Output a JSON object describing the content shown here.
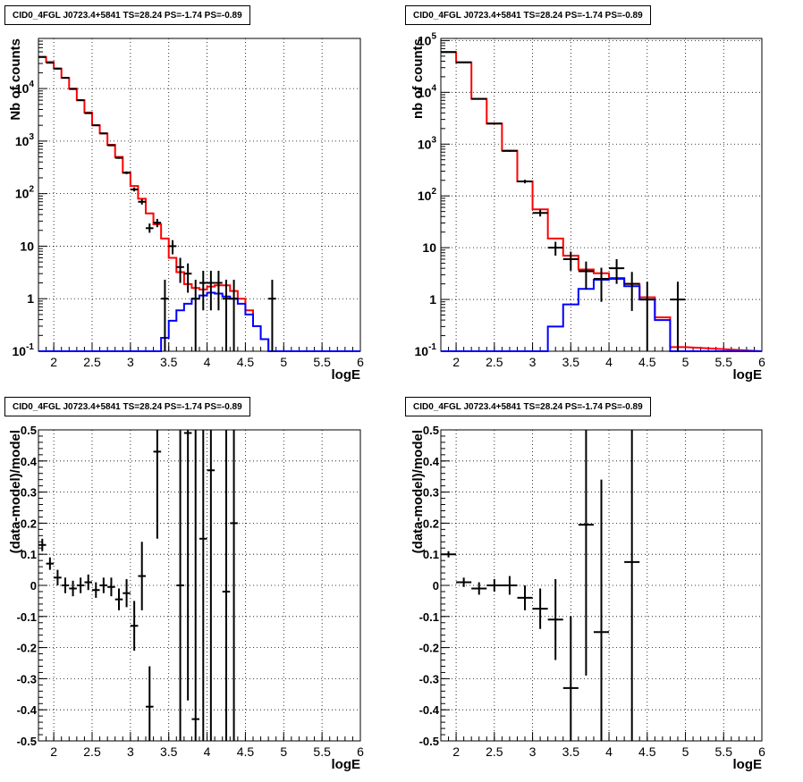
{
  "chart_data": [
    {
      "type": "histogram",
      "panel": "top-left",
      "title": "CID0_4FGL J0723.4+5841 TS=28.24 PS=-1.74 PS=-0.89",
      "xlabel": "logE",
      "ylabel": "Nb of counts",
      "xlim": [
        1.8,
        6.0
      ],
      "ylim": [
        0.1,
        90000
      ],
      "log_y": true,
      "grid": true,
      "x_ticks": [
        "2",
        "2.5",
        "3",
        "3.5",
        "4",
        "4.5",
        "5",
        "5.5",
        "6"
      ],
      "y_ticks": [
        "10^-1",
        "1",
        "10",
        "10^2",
        "10^3",
        "10^4"
      ],
      "bin_edges": [
        1.8,
        1.9,
        2.0,
        2.1,
        2.2,
        2.3,
        2.4,
        2.5,
        2.6,
        2.7,
        2.8,
        2.9,
        3.0,
        3.1,
        3.2,
        3.3,
        3.4,
        3.5,
        3.6,
        3.7,
        3.8,
        3.9,
        4.0,
        4.1,
        4.2,
        4.3,
        4.4,
        4.5,
        4.6,
        4.7,
        4.8,
        4.9,
        5.0
      ],
      "series": [
        {
          "color": "#ff0000",
          "values": [
            40000,
            32000,
            24000,
            16000,
            10000,
            6000,
            3500,
            2000,
            1400,
            850,
            500,
            250,
            140,
            80,
            42,
            26,
            14,
            6,
            3.2,
            1.9,
            1.6,
            1.5,
            1.7,
            1.8,
            1.8,
            1.4,
            1.0,
            0.6,
            0.3,
            0.17,
            0.1,
            0.1
          ]
        },
        {
          "color": "#0000ff",
          "values": [
            0.1,
            0.1,
            0.1,
            0.1,
            0.1,
            0.1,
            0.1,
            0.1,
            0.1,
            0.1,
            0.1,
            0.1,
            0.1,
            0.1,
            0.1,
            0.1,
            0.18,
            0.38,
            0.6,
            0.8,
            1.0,
            1.15,
            1.3,
            1.25,
            1.1,
            1.0,
            0.8,
            0.5,
            0.3,
            0.17,
            0.1,
            0.1
          ]
        }
      ],
      "points": [
        {
          "x": 1.85,
          "y": 40000,
          "lo": 39000,
          "hi": 41000
        },
        {
          "x": 1.95,
          "y": 31000,
          "lo": 30000,
          "hi": 32000
        },
        {
          "x": 2.05,
          "y": 24000,
          "lo": 23000,
          "hi": 25000
        },
        {
          "x": 2.15,
          "y": 16000,
          "lo": 15500,
          "hi": 16500
        },
        {
          "x": 2.25,
          "y": 9800,
          "lo": 9500,
          "hi": 10100
        },
        {
          "x": 2.35,
          "y": 6000,
          "lo": 5800,
          "hi": 6200
        },
        {
          "x": 2.45,
          "y": 3400,
          "lo": 3300,
          "hi": 3500
        },
        {
          "x": 2.55,
          "y": 2000,
          "lo": 1950,
          "hi": 2050
        },
        {
          "x": 2.65,
          "y": 1400,
          "lo": 1350,
          "hi": 1450
        },
        {
          "x": 2.75,
          "y": 830,
          "lo": 800,
          "hi": 860
        },
        {
          "x": 2.85,
          "y": 480,
          "lo": 460,
          "hi": 500
        },
        {
          "x": 2.95,
          "y": 250,
          "lo": 235,
          "hi": 265
        },
        {
          "x": 3.05,
          "y": 120,
          "lo": 110,
          "hi": 131
        },
        {
          "x": 3.15,
          "y": 70,
          "lo": 62,
          "hi": 78
        },
        {
          "x": 3.25,
          "y": 22,
          "lo": 18,
          "hi": 27
        },
        {
          "x": 3.35,
          "y": 28,
          "lo": 23,
          "hi": 33
        },
        {
          "x": 3.45,
          "y": 1,
          "lo": 0.1,
          "hi": 2.3
        },
        {
          "x": 3.55,
          "y": 10,
          "lo": 7,
          "hi": 13
        },
        {
          "x": 3.65,
          "y": 4,
          "lo": 2,
          "hi": 6
        },
        {
          "x": 3.75,
          "y": 3,
          "lo": 1.3,
          "hi": 4.7
        },
        {
          "x": 3.85,
          "y": 1,
          "lo": 0.1,
          "hi": 2.3
        },
        {
          "x": 3.95,
          "y": 2,
          "lo": 0.6,
          "hi": 3.4
        },
        {
          "x": 4.05,
          "y": 2,
          "lo": 0.6,
          "hi": 3.4
        },
        {
          "x": 4.15,
          "y": 2,
          "lo": 0.6,
          "hi": 3.4
        },
        {
          "x": 4.25,
          "y": 1,
          "lo": 0.1,
          "hi": 2.3
        },
        {
          "x": 4.35,
          "y": 1,
          "lo": 0.1,
          "hi": 2.3
        },
        {
          "x": 4.85,
          "y": 1,
          "lo": 0.1,
          "hi": 2.3
        }
      ]
    },
    {
      "type": "histogram",
      "panel": "top-right",
      "title": "CID0_4FGL J0723.4+5841 TS=28.24 PS=-1.74 PS=-0.89",
      "xlabel": "logE",
      "ylabel": "nb of counts",
      "xlim": [
        1.8,
        6.0
      ],
      "ylim": [
        0.1,
        110000
      ],
      "log_y": true,
      "grid": true,
      "x_ticks": [
        "2",
        "2.5",
        "3",
        "3.5",
        "4",
        "4.5",
        "5",
        "5.5",
        "6"
      ],
      "y_ticks": [
        "10^-1",
        "1",
        "10",
        "10^2",
        "10^3",
        "10^4",
        "10^5"
      ],
      "bin_edges": [
        1.8,
        2.0,
        2.2,
        2.4,
        2.6,
        2.8,
        3.0,
        3.2,
        3.4,
        3.6,
        3.8,
        4.0,
        4.2,
        4.4,
        4.6,
        4.8,
        5.0
      ],
      "series": [
        {
          "color": "#ff0000",
          "values": [
            60000,
            38000,
            7500,
            2500,
            750,
            190,
            55,
            15,
            7,
            3.8,
            3.2,
            2.6,
            2.0,
            1.1,
            0.45,
            0.12
          ]
        },
        {
          "color": "#0000ff",
          "values": [
            0.1,
            0.1,
            0.1,
            0.1,
            0.1,
            0.1,
            0.1,
            0.3,
            0.8,
            1.6,
            2.4,
            2.5,
            1.8,
            1.0,
            0.4,
            0.1
          ]
        }
      ],
      "points": [
        {
          "x": 1.9,
          "y": 60000,
          "lo": 59500,
          "hi": 60500
        },
        {
          "x": 2.1,
          "y": 38000,
          "lo": 37600,
          "hi": 38400
        },
        {
          "x": 2.3,
          "y": 7500,
          "lo": 7300,
          "hi": 7700
        },
        {
          "x": 2.5,
          "y": 2500,
          "lo": 2400,
          "hi": 2600
        },
        {
          "x": 2.7,
          "y": 740,
          "lo": 710,
          "hi": 770
        },
        {
          "x": 2.9,
          "y": 190,
          "lo": 175,
          "hi": 205
        },
        {
          "x": 3.1,
          "y": 47,
          "lo": 40,
          "hi": 54
        },
        {
          "x": 3.3,
          "y": 10,
          "lo": 7,
          "hi": 13
        },
        {
          "x": 3.5,
          "y": 6,
          "lo": 3.6,
          "hi": 8.4
        },
        {
          "x": 3.7,
          "y": 3.5,
          "lo": 1.6,
          "hi": 5.4
        },
        {
          "x": 3.9,
          "y": 2.5,
          "lo": 0.9,
          "hi": 4.1
        },
        {
          "x": 4.1,
          "y": 4,
          "lo": 2,
          "hi": 6
        },
        {
          "x": 4.3,
          "y": 2,
          "lo": 0.6,
          "hi": 3.4
        },
        {
          "x": 4.5,
          "y": 1,
          "lo": 0.1,
          "hi": 2.2
        },
        {
          "x": 4.9,
          "y": 1,
          "lo": 0.1,
          "hi": 2.2
        }
      ]
    },
    {
      "type": "scatter",
      "panel": "bottom-left",
      "title": "CID0_4FGL J0723.4+5841 TS=28.24 PS=-1.74 PS=-0.89",
      "xlabel": "logE",
      "ylabel": "(data-model)/model",
      "xlim": [
        1.8,
        6.0
      ],
      "ylim": [
        -0.5,
        0.5
      ],
      "grid": true,
      "x_ticks": [
        "2",
        "2.5",
        "3",
        "3.5",
        "4",
        "4.5",
        "5",
        "5.5",
        "6"
      ],
      "y_ticks": [
        "-0.5",
        "-0.4",
        "-0.3",
        "-0.2",
        "-0.1",
        "0",
        "0.1",
        "0.2",
        "0.3",
        "0.4",
        "0.5"
      ],
      "x_halfwidth": 0.05,
      "points": [
        {
          "x": 1.85,
          "y": 0.13,
          "lo": 0.11,
          "hi": 0.15
        },
        {
          "x": 1.95,
          "y": 0.07,
          "lo": 0.05,
          "hi": 0.09
        },
        {
          "x": 2.05,
          "y": 0.025,
          "lo": 0.0,
          "hi": 0.05
        },
        {
          "x": 2.15,
          "y": 0.0,
          "lo": -0.025,
          "hi": 0.025
        },
        {
          "x": 2.25,
          "y": -0.01,
          "lo": -0.035,
          "hi": 0.015
        },
        {
          "x": 2.35,
          "y": 0.0,
          "lo": -0.025,
          "hi": 0.025
        },
        {
          "x": 2.45,
          "y": 0.01,
          "lo": -0.015,
          "hi": 0.035
        },
        {
          "x": 2.55,
          "y": -0.015,
          "lo": -0.04,
          "hi": 0.01
        },
        {
          "x": 2.65,
          "y": 0.0,
          "lo": -0.025,
          "hi": 0.025
        },
        {
          "x": 2.75,
          "y": -0.005,
          "lo": -0.035,
          "hi": 0.025
        },
        {
          "x": 2.85,
          "y": -0.045,
          "lo": -0.08,
          "hi": -0.01
        },
        {
          "x": 2.95,
          "y": -0.025,
          "lo": -0.07,
          "hi": 0.02
        },
        {
          "x": 3.05,
          "y": -0.13,
          "lo": -0.21,
          "hi": -0.05
        },
        {
          "x": 3.15,
          "y": 0.03,
          "lo": -0.08,
          "hi": 0.14
        },
        {
          "x": 3.25,
          "y": -0.39,
          "lo": -0.5,
          "hi": -0.26
        },
        {
          "x": 3.35,
          "y": 0.43,
          "lo": 0.15,
          "hi": 0.5
        },
        {
          "x": 3.65,
          "y": 0.0,
          "lo": -0.5,
          "hi": 0.5
        },
        {
          "x": 3.75,
          "y": 0.49,
          "lo": -0.37,
          "hi": 0.5
        },
        {
          "x": 3.85,
          "y": -0.43,
          "lo": -0.5,
          "hi": 0.5
        },
        {
          "x": 3.95,
          "y": 0.15,
          "lo": -0.5,
          "hi": 0.5
        },
        {
          "x": 4.05,
          "y": 0.37,
          "lo": -0.5,
          "hi": 0.5
        },
        {
          "x": 4.25,
          "y": -0.02,
          "lo": -0.5,
          "hi": 0.5
        },
        {
          "x": 4.35,
          "y": 0.2,
          "lo": -0.5,
          "hi": 0.5
        }
      ]
    },
    {
      "type": "scatter",
      "panel": "bottom-right",
      "title": "CID0_4FGL J0723.4+5841 TS=28.24 PS=-1.74 PS=-0.89",
      "xlabel": "logE",
      "ylabel": "(data-model)/model",
      "xlim": [
        1.8,
        6.0
      ],
      "ylim": [
        -0.5,
        0.5
      ],
      "grid": true,
      "x_ticks": [
        "2",
        "2.5",
        "3",
        "3.5",
        "4",
        "4.5",
        "5",
        "5.5",
        "6"
      ],
      "y_ticks": [
        "-0.5",
        "-0.4",
        "-0.3",
        "-0.2",
        "-0.1",
        "0",
        "0.1",
        "0.2",
        "0.3",
        "0.4",
        "0.5"
      ],
      "x_halfwidth": 0.1,
      "points": [
        {
          "x": 1.9,
          "y": 0.1,
          "lo": 0.09,
          "hi": 0.11
        },
        {
          "x": 2.1,
          "y": 0.01,
          "lo": -0.005,
          "hi": 0.025
        },
        {
          "x": 2.3,
          "y": -0.01,
          "lo": -0.03,
          "hi": 0.01
        },
        {
          "x": 2.5,
          "y": 0.0,
          "lo": -0.02,
          "hi": 0.02
        },
        {
          "x": 2.7,
          "y": 0.0,
          "lo": -0.03,
          "hi": 0.03
        },
        {
          "x": 2.9,
          "y": -0.04,
          "lo": -0.08,
          "hi": 0.0
        },
        {
          "x": 3.1,
          "y": -0.075,
          "lo": -0.14,
          "hi": -0.01
        },
        {
          "x": 3.3,
          "y": -0.11,
          "lo": -0.24,
          "hi": 0.02
        },
        {
          "x": 3.5,
          "y": -0.33,
          "lo": -0.5,
          "hi": -0.1
        },
        {
          "x": 3.7,
          "y": 0.195,
          "lo": -0.29,
          "hi": 0.5
        },
        {
          "x": 3.9,
          "y": -0.15,
          "lo": -0.5,
          "hi": 0.34
        },
        {
          "x": 4.3,
          "y": 0.075,
          "lo": -0.5,
          "hi": 0.5
        }
      ]
    }
  ]
}
